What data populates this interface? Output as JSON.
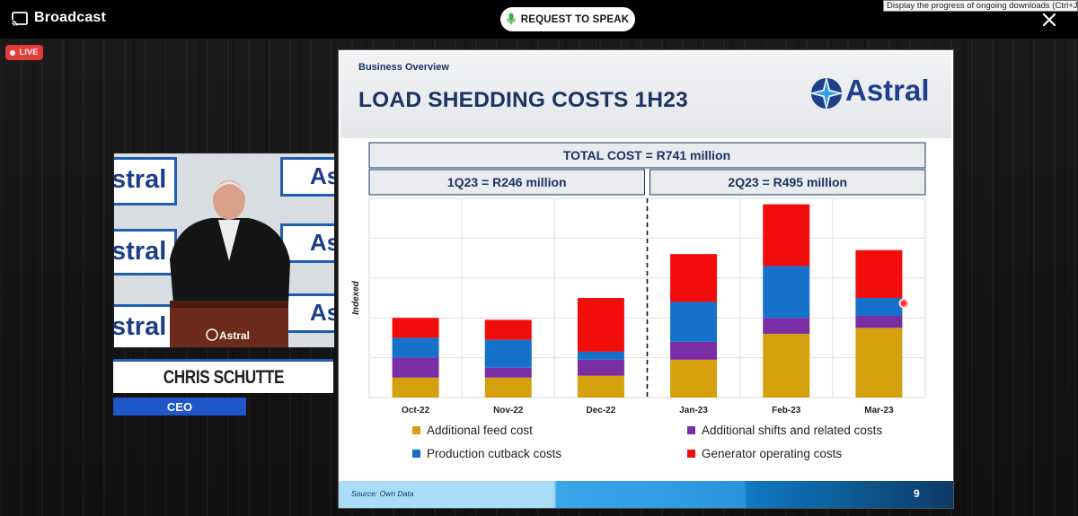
{
  "app": {
    "title": "Broadcast",
    "live_label": "LIVE"
  },
  "toolbar": {
    "request_to_speak": "REQUEST TO SPEAK"
  },
  "tooltip": "Display the progress of ongoing downloads (Ctrl+J)",
  "speaker": {
    "name": "CHRIS SCHUTTE",
    "role": "CEO",
    "backdrop_word": "stral",
    "backdrop_short": "As",
    "podium_label": "Astral"
  },
  "slide": {
    "section": "Business Overview",
    "title": "LOAD SHEDDING COSTS 1H23",
    "logo_text": "Astral",
    "source": "Source: Own Data",
    "page": "9"
  },
  "colors": {
    "feed": "#d4a00e",
    "shifts": "#7a2ea3",
    "cutback": "#1571c9",
    "generator": "#f20d0d",
    "title": "#1a3463",
    "accent": "#1e5fb0"
  },
  "chart_data": {
    "type": "bar",
    "stacked": true,
    "title": "TOTAL COST = R741 million",
    "groups": [
      {
        "label": "1Q23 = R246 million",
        "categories": [
          "Oct-22",
          "Nov-22",
          "Dec-22"
        ]
      },
      {
        "label": "2Q23 = R495 million",
        "categories": [
          "Jan-23",
          "Feb-23",
          "Mar-23"
        ]
      }
    ],
    "categories": [
      "Oct-22",
      "Nov-22",
      "Dec-22",
      "Jan-23",
      "Feb-23",
      "Mar-23"
    ],
    "ylabel": "Indexed",
    "xlabel": "",
    "ylim": [
      0,
      100
    ],
    "grid": true,
    "series": [
      {
        "name": "Additional feed cost",
        "color": "#d4a00e",
        "values": [
          10,
          10,
          11,
          19,
          32,
          35
        ]
      },
      {
        "name": "Additional shifts and related costs",
        "color": "#7a2ea3",
        "values": [
          10,
          5,
          8,
          9,
          8,
          6
        ]
      },
      {
        "name": "Production cutback costs",
        "color": "#1571c9",
        "values": [
          10,
          14,
          4,
          20,
          26,
          9
        ]
      },
      {
        "name": "Generator operating costs",
        "color": "#f20d0d",
        "values": [
          10,
          10,
          27,
          24,
          31,
          24
        ]
      }
    ]
  }
}
